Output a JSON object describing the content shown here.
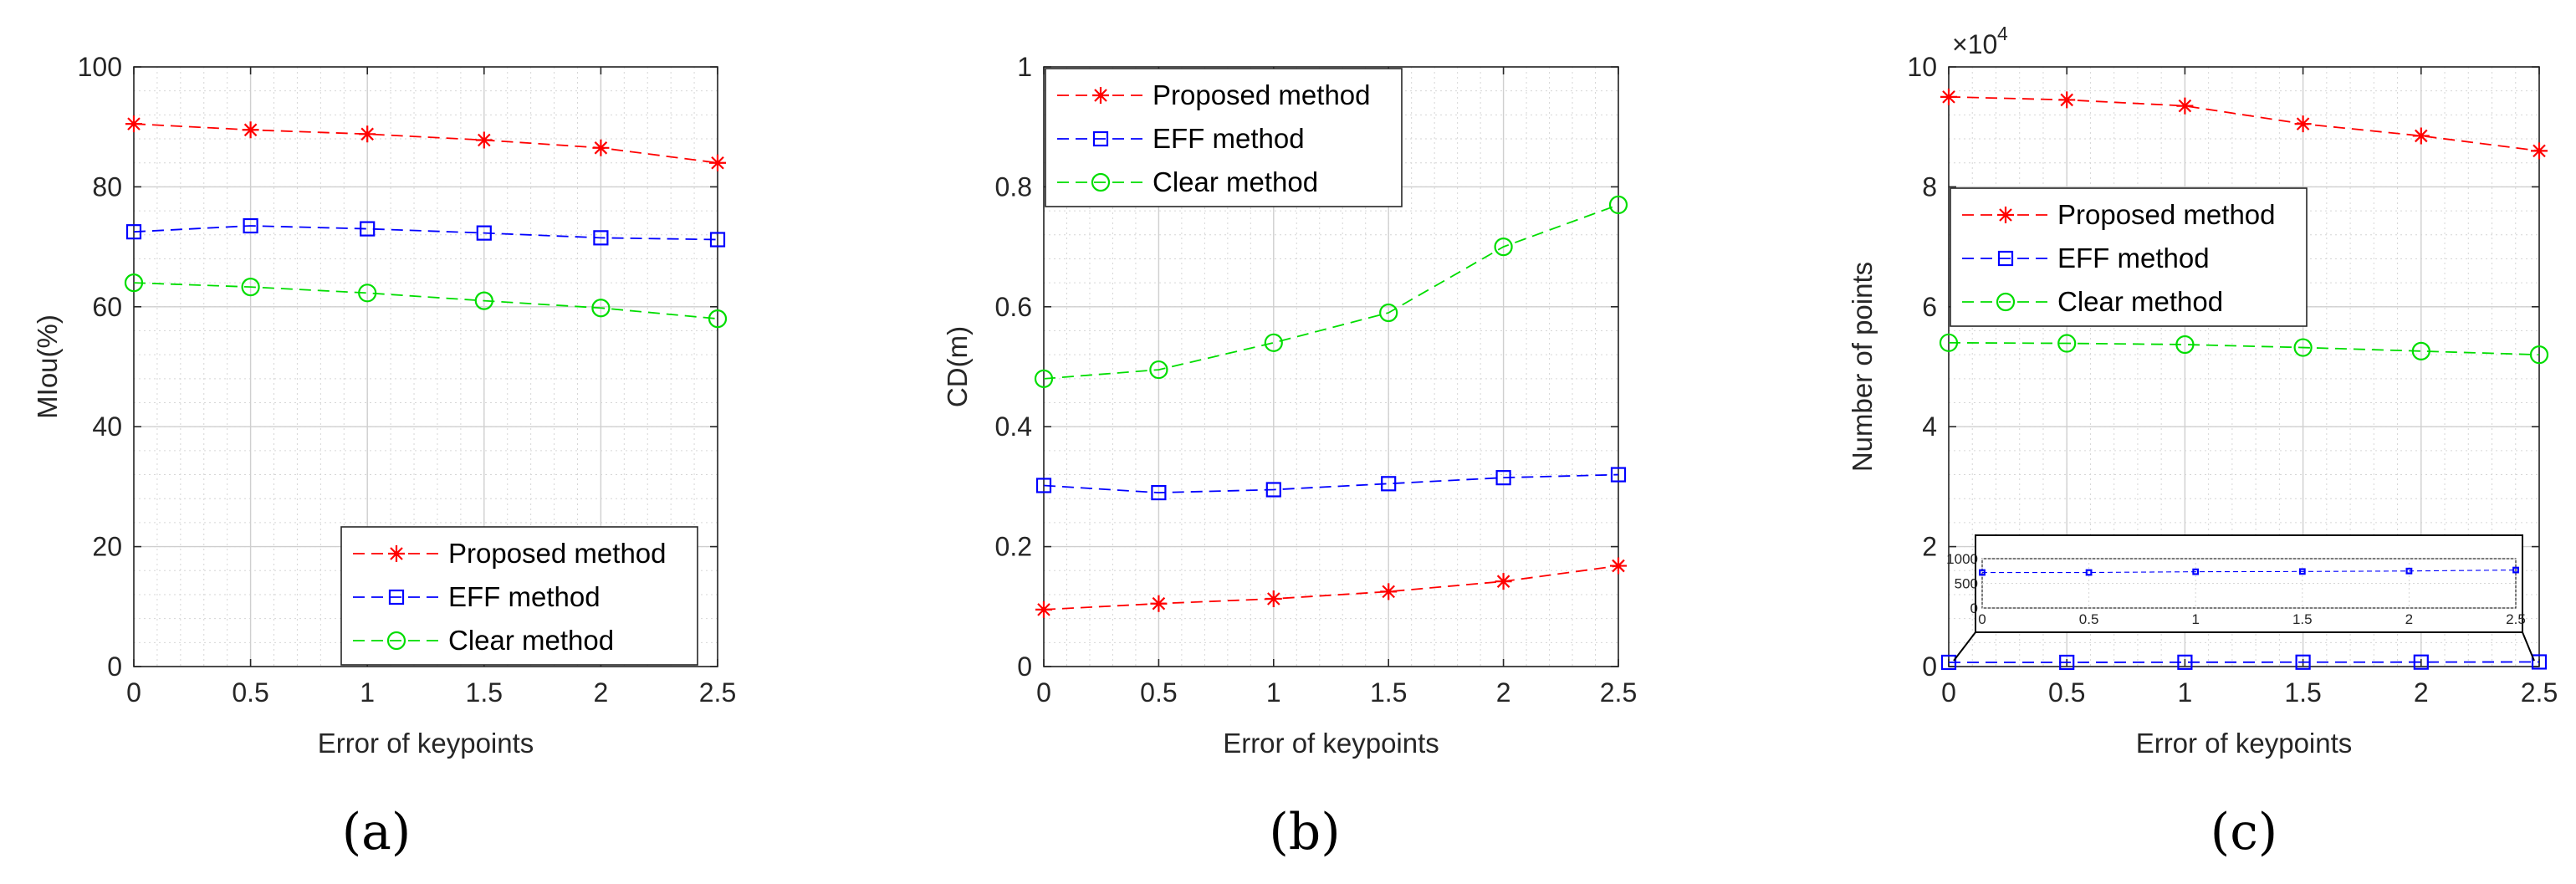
{
  "chart_data": [
    {
      "type": "line",
      "panel": "a",
      "xlabel": "Error of keypoints",
      "ylabel": "MIou(%)",
      "x": [
        0,
        0.5,
        1,
        1.5,
        2,
        2.5
      ],
      "xticks": [
        "0",
        "0.5",
        "1",
        "1.5",
        "2",
        "2.5"
      ],
      "xlim": [
        0,
        2.5
      ],
      "ylim": [
        0,
        100
      ],
      "yticks": [
        "0",
        "20",
        "40",
        "60",
        "80",
        "100"
      ],
      "grid": true,
      "legend_position": "bottom-right",
      "series": [
        {
          "name": "Proposed method",
          "values": [
            90.5,
            89.5,
            88.8,
            87.8,
            86.5,
            84.0
          ],
          "color": "#ff0000",
          "marker": "star"
        },
        {
          "name": "EFF method",
          "values": [
            72.5,
            73.5,
            73.0,
            72.3,
            71.5,
            71.2
          ],
          "color": "#0000ff",
          "marker": "square"
        },
        {
          "name": "Clear method",
          "values": [
            64.0,
            63.3,
            62.3,
            61.0,
            59.8,
            58.0
          ],
          "color": "#00dd00",
          "marker": "circle"
        }
      ]
    },
    {
      "type": "line",
      "panel": "b",
      "xlabel": "Error of keypoints",
      "ylabel": "CD(m)",
      "x": [
        0,
        0.5,
        1,
        1.5,
        2,
        2.5
      ],
      "xticks": [
        "0",
        "0.5",
        "1",
        "1.5",
        "2",
        "2.5"
      ],
      "xlim": [
        0,
        2.5
      ],
      "ylim": [
        0,
        1
      ],
      "yticks": [
        "0",
        "0.2",
        "0.4",
        "0.6",
        "0.8",
        "1"
      ],
      "grid": true,
      "legend_position": "top-right",
      "series": [
        {
          "name": "Proposed method",
          "values": [
            0.095,
            0.105,
            0.113,
            0.125,
            0.142,
            0.168
          ],
          "color": "#ff0000",
          "marker": "star"
        },
        {
          "name": "EFF method",
          "values": [
            0.302,
            0.29,
            0.295,
            0.305,
            0.315,
            0.32
          ],
          "color": "#0000ff",
          "marker": "square"
        },
        {
          "name": "Clear method",
          "values": [
            0.48,
            0.495,
            0.54,
            0.59,
            0.7,
            0.77
          ],
          "color": "#00dd00",
          "marker": "circle"
        }
      ]
    },
    {
      "type": "line",
      "panel": "c",
      "xlabel": "Error of keypoints",
      "ylabel": "Number of points",
      "exponent_label": "×10",
      "exponent_power": "4",
      "x": [
        0,
        0.5,
        1,
        1.5,
        2,
        2.5
      ],
      "xticks": [
        "0",
        "0.5",
        "1",
        "1.5",
        "2",
        "2.5"
      ],
      "xlim": [
        0,
        2.5
      ],
      "ylim": [
        0,
        10
      ],
      "yticks": [
        "0",
        "2",
        "4",
        "6",
        "8",
        "10"
      ],
      "grid": true,
      "legend_position": "upper-left",
      "series": [
        {
          "name": "Proposed method",
          "values": [
            9.5,
            9.45,
            9.35,
            9.05,
            8.85,
            8.6
          ],
          "color": "#ff0000",
          "marker": "star"
        },
        {
          "name": "EFF method",
          "values": [
            0.07,
            0.07,
            0.072,
            0.073,
            0.074,
            0.077
          ],
          "color": "#0000ff",
          "marker": "square"
        },
        {
          "name": "Clear method",
          "values": [
            5.4,
            5.39,
            5.37,
            5.32,
            5.26,
            5.2
          ],
          "color": "#00dd00",
          "marker": "circle"
        }
      ],
      "inset": {
        "series": "EFF method",
        "ylim": [
          0,
          1000
        ],
        "yticks": [
          "0",
          "500",
          "1000"
        ],
        "xticks": [
          "0",
          "0.5",
          "1",
          "1.5",
          "2",
          "2.5"
        ],
        "values": [
          720,
          720,
          735,
          740,
          750,
          770
        ]
      }
    }
  ],
  "panel_labels": [
    "(a)",
    "(b)",
    "(c)"
  ]
}
